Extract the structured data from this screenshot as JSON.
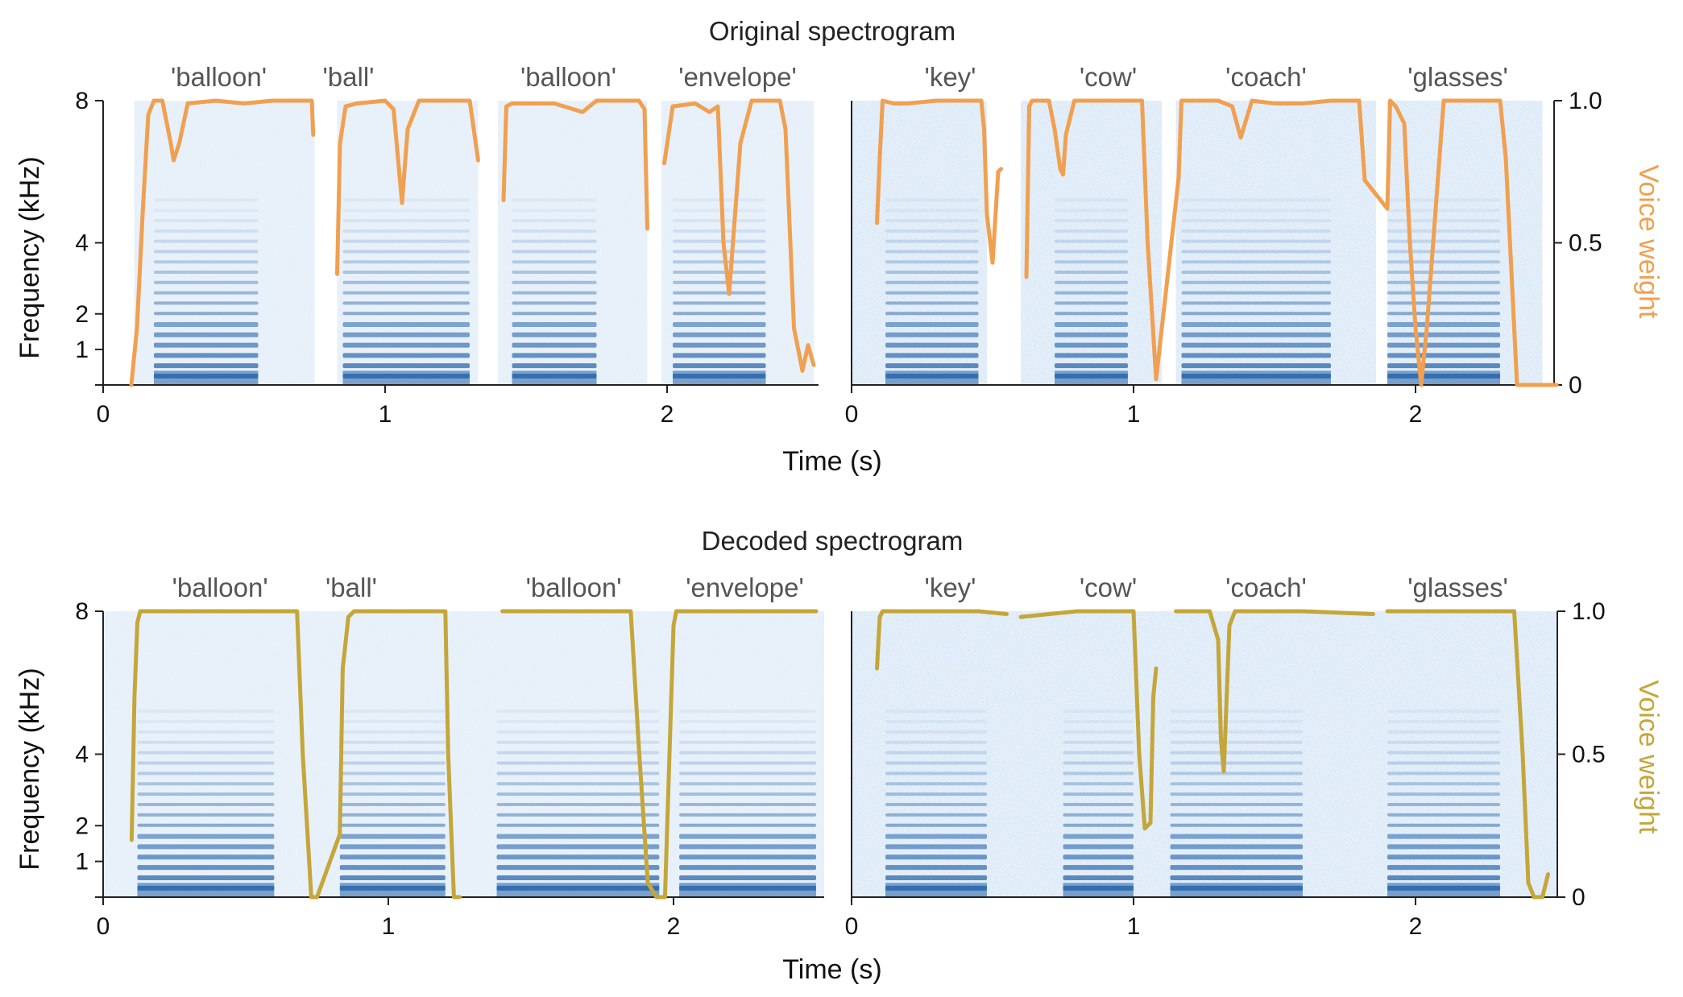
{
  "figure": {
    "colors": {
      "original_weight": "#F0A050",
      "decoded_weight": "#C4A63A",
      "spectrogram": "#1F5FA8",
      "spectrogram_background": "#EAF2FA"
    },
    "panels": [
      {
        "key": "original",
        "title": "Original spectrogram",
        "weight_color": "#F0A050",
        "xlabel": "Time (s)",
        "ylabel": "Frequency (kHz)",
        "right_label": "Voice weight"
      },
      {
        "key": "decoded",
        "title": "Decoded spectrogram",
        "weight_color": "#C4A63A",
        "xlabel": "Time (s)",
        "ylabel": "Frequency (kHz)",
        "right_label": "Voice weight"
      }
    ]
  },
  "chart_data": [
    {
      "type": "line",
      "title": "Original spectrogram",
      "xlabel": "Time (s)",
      "ylabel": "Frequency (kHz)",
      "y2label": "Voice weight",
      "xticks": [
        "0",
        "1",
        "2"
      ],
      "yticks": [
        "1",
        "2",
        "4",
        "8"
      ],
      "y2ticks": [
        "0",
        "0.5",
        "1.0"
      ],
      "xlim": [
        0,
        2.55
      ],
      "ylim_khz": [
        0,
        8
      ],
      "y2lim": [
        0,
        1.0
      ],
      "subplots": [
        {
          "words": [
            "'balloon'",
            "'ball'",
            "'balloon'",
            "'envelope'"
          ],
          "word_centers_s": [
            0.41,
            0.87,
            1.65,
            2.25
          ],
          "segments_s": [
            [
              0.11,
              0.75
            ],
            [
              0.83,
              1.33
            ],
            [
              1.4,
              1.93
            ],
            [
              1.98,
              2.52
            ]
          ],
          "voiced_s": [
            [
              0.18,
              0.55
            ],
            [
              0.85,
              1.3
            ],
            [
              1.45,
              1.75
            ],
            [
              2.02,
              2.35
            ]
          ],
          "series": [
            {
              "name": "Voice weight",
              "x": [
                0.1,
                0.12,
                0.14,
                0.16,
                0.18,
                0.21,
                0.24,
                0.25,
                0.27,
                0.3,
                0.4,
                0.5,
                0.6,
                0.7,
                0.74,
                0.745,
                0.76,
                0.83,
                0.84,
                0.86,
                0.9,
                1.0,
                1.03,
                1.06,
                1.08,
                1.12,
                1.2,
                1.3,
                1.33,
                1.34,
                1.42,
                1.43,
                1.45,
                1.5,
                1.6,
                1.7,
                1.75,
                1.8,
                1.9,
                1.92,
                1.93,
                1.97,
                1.99,
                2.02,
                2.1,
                2.15,
                2.18,
                2.2,
                2.22,
                2.26,
                2.3,
                2.4,
                2.42,
                2.45,
                2.48,
                2.5,
                2.52
              ],
              "y": [
                0.0,
                0.2,
                0.6,
                0.95,
                1.0,
                1.0,
                0.85,
                0.79,
                0.85,
                0.99,
                1.0,
                0.99,
                1.0,
                1.0,
                1.0,
                0.88,
                null,
                0.39,
                0.85,
                0.98,
                0.99,
                1.0,
                0.97,
                0.64,
                0.9,
                1.0,
                1.0,
                1.0,
                0.79,
                null,
                0.65,
                0.98,
                0.99,
                0.99,
                0.99,
                0.96,
                1.0,
                1.0,
                1.0,
                0.97,
                0.55,
                null,
                0.78,
                0.98,
                0.99,
                0.96,
                0.98,
                0.5,
                0.32,
                0.85,
                1.0,
                1.0,
                0.9,
                0.2,
                0.05,
                0.14,
                0.07
              ]
            }
          ]
        },
        {
          "words": [
            "'key'",
            "'cow'",
            "'coach'",
            "'glasses'"
          ],
          "word_centers_s": [
            0.35,
            0.91,
            1.47,
            2.15
          ],
          "segments_s": [
            [
              0.0,
              0.48
            ],
            [
              0.6,
              1.1
            ],
            [
              1.15,
              1.86
            ],
            [
              1.9,
              2.45
            ]
          ],
          "voiced_s": [
            [
              0.12,
              0.45
            ],
            [
              0.72,
              0.98
            ],
            [
              1.17,
              1.7
            ],
            [
              1.9,
              2.3
            ]
          ],
          "series": [
            {
              "name": "Voice weight",
              "x": [
                0.09,
                0.1,
                0.11,
                0.15,
                0.2,
                0.3,
                0.4,
                0.46,
                0.47,
                0.48,
                0.5,
                0.52,
                0.53,
                0.55,
                0.62,
                0.63,
                0.64,
                0.7,
                0.72,
                0.74,
                0.75,
                0.76,
                0.79,
                0.8,
                0.9,
                1.0,
                1.03,
                1.05,
                1.08,
                1.16,
                1.17,
                1.2,
                1.3,
                1.35,
                1.38,
                1.42,
                1.5,
                1.6,
                1.7,
                1.8,
                1.82,
                1.9,
                1.91,
                1.93,
                1.96,
                1.98,
                2.0,
                2.02,
                2.04,
                2.1,
                2.2,
                2.3,
                2.32,
                2.36,
                2.5
              ],
              "y": [
                0.57,
                0.8,
                1.0,
                0.99,
                0.99,
                1.0,
                1.0,
                1.0,
                0.9,
                0.6,
                0.43,
                0.75,
                0.76,
                null,
                0.38,
                0.98,
                1.0,
                1.0,
                0.9,
                0.76,
                0.74,
                0.88,
                1.0,
                1.0,
                1.0,
                1.0,
                1.0,
                0.5,
                0.02,
                0.73,
                1.0,
                1.0,
                1.0,
                0.98,
                0.87,
                1.0,
                0.99,
                0.99,
                1.0,
                1.0,
                0.72,
                0.62,
                1.0,
                0.98,
                0.92,
                0.5,
                0.2,
                0.0,
                0.2,
                1.0,
                1.0,
                1.0,
                0.8,
                0.0,
                0.0
              ]
            }
          ]
        }
      ]
    },
    {
      "type": "line",
      "title": "Decoded spectrogram",
      "xlabel": "Time (s)",
      "ylabel": "Frequency (kHz)",
      "y2label": "Voice weight",
      "xticks": [
        "0",
        "1",
        "2"
      ],
      "yticks": [
        "1",
        "2",
        "4",
        "8"
      ],
      "y2ticks": [
        "0",
        "0.5",
        "1.0"
      ],
      "xlim": [
        0,
        2.55
      ],
      "ylim_khz": [
        0,
        8
      ],
      "y2lim": [
        0,
        1.0
      ],
      "subplots": [
        {
          "words": [
            "'balloon'",
            "'ball'",
            "'balloon'",
            "'envelope'"
          ],
          "word_centers_s": [
            0.41,
            0.87,
            1.65,
            2.25
          ],
          "segments_s": [
            [
              0.0,
              0.68
            ],
            [
              0.68,
              1.36
            ],
            [
              1.36,
              1.98
            ],
            [
              1.98,
              2.55
            ]
          ],
          "voiced_s": [
            [
              0.12,
              0.6
            ],
            [
              0.83,
              1.2
            ],
            [
              1.38,
              1.95
            ],
            [
              2.02,
              2.5
            ]
          ],
          "series": [
            {
              "name": "Voice weight",
              "x": [
                0.1,
                0.11,
                0.12,
                0.13,
                0.15,
                0.3,
                0.5,
                0.68,
                0.7,
                0.73,
                0.75,
                0.83,
                0.84,
                0.86,
                0.88,
                1.0,
                1.2,
                1.21,
                1.23,
                1.25,
                1.3,
                1.4,
                1.6,
                1.85,
                1.88,
                1.91,
                1.94,
                1.97,
                2.0,
                2.01,
                2.02,
                2.2,
                2.4,
                2.5
              ],
              "y": [
                0.2,
                0.7,
                0.96,
                1.0,
                1.0,
                1.0,
                1.0,
                1.0,
                0.5,
                0.0,
                0.0,
                0.22,
                0.8,
                0.98,
                1.0,
                1.0,
                1.0,
                0.5,
                0.0,
                0.0,
                null,
                1.0,
                1.0,
                1.0,
                0.5,
                0.05,
                0.0,
                0.0,
                0.95,
                1.0,
                1.0,
                1.0,
                1.0,
                1.0
              ]
            }
          ]
        },
        {
          "words": [
            "'key'",
            "'cow'",
            "'coach'",
            "'glasses'"
          ],
          "word_centers_s": [
            0.35,
            0.91,
            1.47,
            2.15
          ],
          "segments_s": [
            [
              0.0,
              2.5
            ]
          ],
          "voiced_s": [
            [
              0.12,
              0.48
            ],
            [
              0.75,
              1.0
            ],
            [
              1.13,
              1.6
            ],
            [
              1.9,
              2.3
            ]
          ],
          "series": [
            {
              "name": "Voice weight",
              "x": [
                0.09,
                0.1,
                0.11,
                0.12,
                0.3,
                0.45,
                0.55,
                null,
                0.6,
                0.8,
                1.0,
                1.02,
                1.04,
                1.06,
                1.07,
                1.08,
                null,
                1.15,
                1.27,
                1.3,
                1.31,
                1.32,
                1.34,
                1.36,
                1.38,
                1.5,
                1.6,
                1.85,
                null,
                1.9,
                2.1,
                2.35,
                2.38,
                2.4,
                2.42,
                2.45,
                2.47
              ],
              "y": [
                0.8,
                0.98,
                1.0,
                1.0,
                1.0,
                1.0,
                0.99,
                null,
                0.98,
                1.0,
                1.0,
                0.5,
                0.24,
                0.26,
                0.7,
                0.8,
                null,
                1.0,
                1.0,
                0.9,
                0.55,
                0.44,
                0.95,
                1.0,
                1.0,
                1.0,
                1.0,
                0.99,
                null,
                1.0,
                1.0,
                1.0,
                0.5,
                0.05,
                0.0,
                0.0,
                0.08
              ]
            }
          ]
        }
      ]
    }
  ]
}
